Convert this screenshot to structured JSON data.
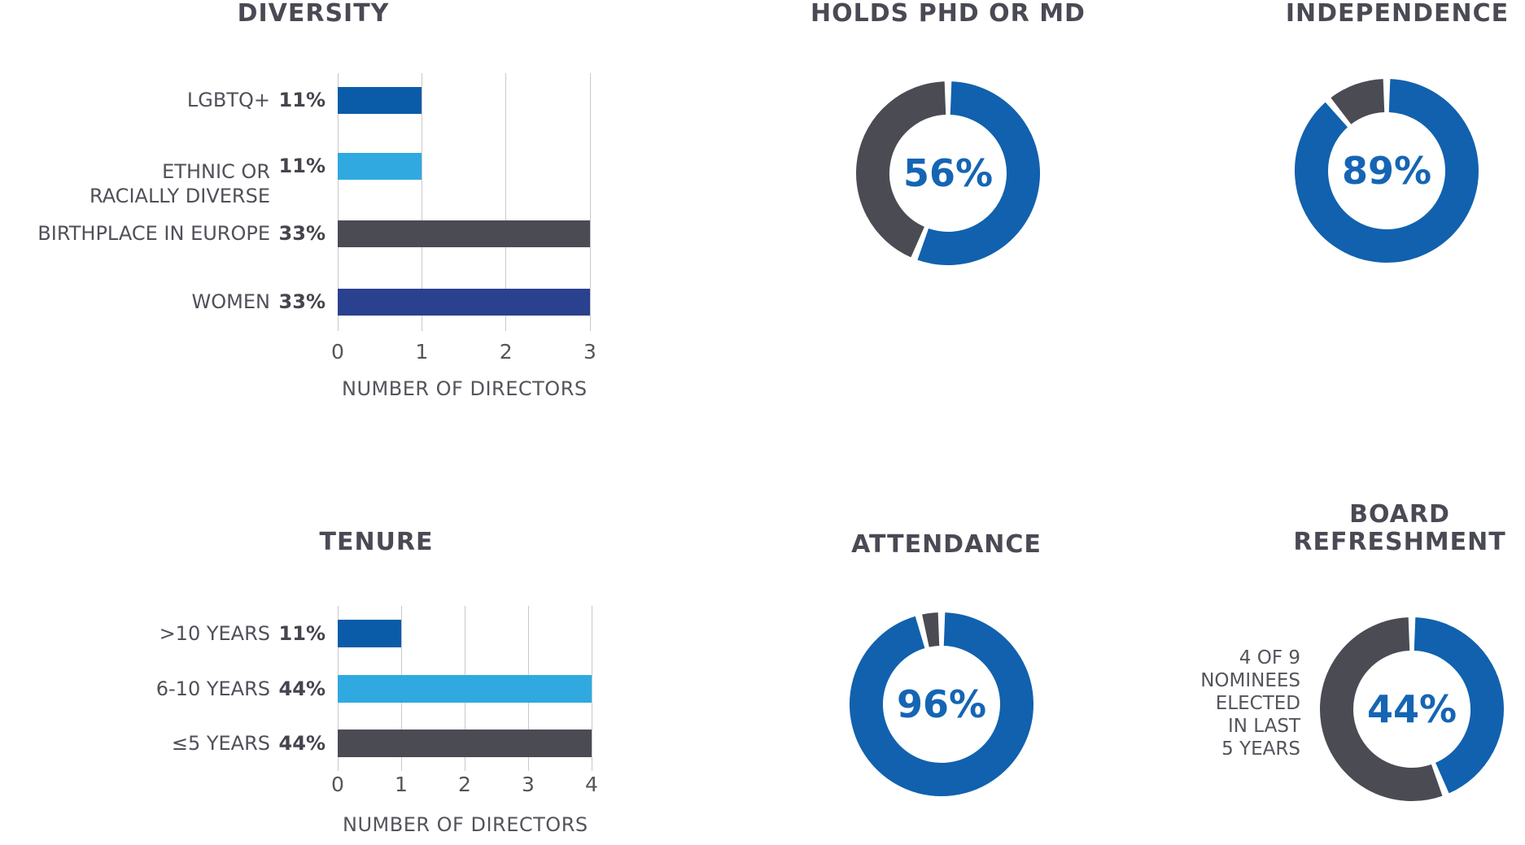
{
  "colors": {
    "bar_dark_blue": "#0a5ca8",
    "bar_light_blue": "#30a9e0",
    "bar_charcoal": "#4b4b54",
    "bar_navy": "#2a418f",
    "donut_blue": "#1161ae",
    "donut_gray": "#4b4b54",
    "center_text_blue": "#1565b4",
    "title_gray": "#4a4a55",
    "label_gray": "#50505a",
    "gridline_gray": "#c9c9ce"
  },
  "chart_data": [
    {
      "type": "bar",
      "orientation": "horizontal",
      "title": "DIVERSITY",
      "categories": [
        "LGBTQ+",
        "ETHNIC OR RACIALLY DIVERSE",
        "BIRTHPLACE IN EUROPE",
        "WOMEN"
      ],
      "category_lines": [
        [
          "LGBTQ+"
        ],
        [
          "ETHNIC OR",
          "RACIALLY DIVERSE"
        ],
        [
          "BIRTHPLACE IN EUROPE"
        ],
        [
          "WOMEN"
        ]
      ],
      "values": [
        1,
        1,
        3,
        3
      ],
      "value_labels": [
        "11%",
        "11%",
        "33%",
        "33%"
      ],
      "bar_colors": [
        "#0a5ca8",
        "#30a9e0",
        "#4b4b54",
        "#2a418f"
      ],
      "xlabel": "NUMBER OF DIRECTORS",
      "xlim": [
        0,
        3
      ],
      "xticks": [
        "0",
        "1",
        "2",
        "3"
      ],
      "grid": true
    },
    {
      "type": "pie",
      "subtype": "donut",
      "title": "HOLDS PHD OR MD",
      "values": [
        56,
        44
      ],
      "segment_colors": [
        "#1161ae",
        "#4b4b54"
      ],
      "center_label": "56%"
    },
    {
      "type": "pie",
      "subtype": "donut",
      "title": "INDEPENDENCE",
      "values": [
        89,
        11
      ],
      "segment_colors": [
        "#1161ae",
        "#4b4b54"
      ],
      "center_label": "89%"
    },
    {
      "type": "bar",
      "orientation": "horizontal",
      "title": "TENURE",
      "categories": [
        ">10 YEARS",
        "6-10 YEARS",
        "≤5 YEARS"
      ],
      "category_lines": [
        [
          ">10 YEARS"
        ],
        [
          "6-10 YEARS"
        ],
        [
          "≤5 YEARS"
        ]
      ],
      "values": [
        1,
        4,
        4
      ],
      "value_labels": [
        "11%",
        "44%",
        "44%"
      ],
      "bar_colors": [
        "#0a5ca8",
        "#30a9e0",
        "#4b4b54"
      ],
      "xlabel": "NUMBER OF DIRECTORS",
      "xlim": [
        0,
        4
      ],
      "xticks": [
        "0",
        "1",
        "2",
        "3",
        "4"
      ],
      "grid": true
    },
    {
      "type": "pie",
      "subtype": "donut",
      "title": "ATTENDANCE",
      "values": [
        96,
        4
      ],
      "segment_colors": [
        "#1161ae",
        "#4b4b54"
      ],
      "center_label": "96%"
    },
    {
      "type": "pie",
      "subtype": "donut",
      "title": "BOARD REFRESHMENT",
      "title_lines": [
        "BOARD",
        "REFRESHMENT"
      ],
      "values": [
        44,
        56
      ],
      "segment_colors": [
        "#1161ae",
        "#4b4b54"
      ],
      "center_label": "44%",
      "annotation": "4 OF 9 NOMINEES ELECTED IN LAST 5 YEARS",
      "annotation_lines": [
        "4 OF 9",
        "NOMINEES",
        "ELECTED",
        "IN LAST",
        "5 YEARS"
      ]
    }
  ]
}
